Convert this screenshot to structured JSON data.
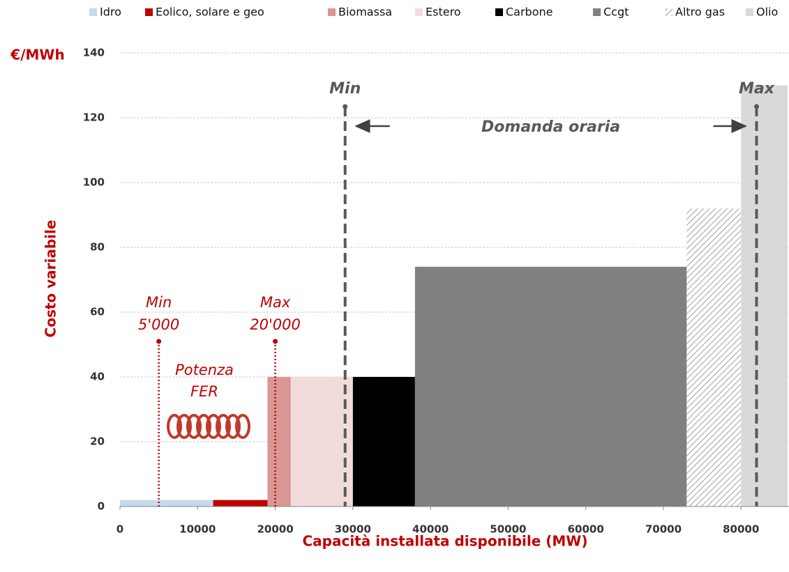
{
  "chart_data": {
    "type": "histogram",
    "series_names": [
      "Idro",
      "Eolico, solare e geo",
      "Biomassa",
      "Estero",
      "Carbone",
      "Ccgt",
      "Altro gas",
      "Olio"
    ],
    "colors": [
      "#c5d9f1",
      "#c00000",
      "#d99694",
      "#f2dcdb",
      "#000000",
      "#808080",
      "#d0d0d0",
      "#d9d9d9"
    ],
    "hatched": [
      false,
      false,
      false,
      false,
      false,
      false,
      true,
      false
    ],
    "bins": [
      0,
      12000,
      19000,
      22000,
      30000,
      38000,
      73000,
      80000,
      86000
    ],
    "values": [
      2,
      2,
      40,
      40,
      40,
      74,
      92,
      130
    ],
    "xlim": [
      0,
      86000
    ],
    "ylim": [
      0,
      140
    ],
    "xticks": [
      0,
      10000,
      20000,
      30000,
      40000,
      50000,
      60000,
      70000,
      80000
    ],
    "yticks": [
      0,
      20,
      40,
      60,
      80,
      100,
      120,
      140
    ],
    "grid": true,
    "legend": "top",
    "y_unit": "€/MWh",
    "ylabel": "Costo variabile",
    "xlabel": "Capacità installata disponibile (MW)",
    "fer_lines": [
      {
        "text": "Min",
        "x": 5000,
        "label": "5'000"
      },
      {
        "text": "Max",
        "x": 20000,
        "label": "20'000"
      }
    ],
    "fer_text": [
      "Potenza",
      "FER"
    ],
    "demand_lines": [
      {
        "text": "Min",
        "x": 29000
      },
      {
        "text": "Max",
        "x": 82000
      }
    ],
    "demand_text": "Domanda oraria"
  }
}
